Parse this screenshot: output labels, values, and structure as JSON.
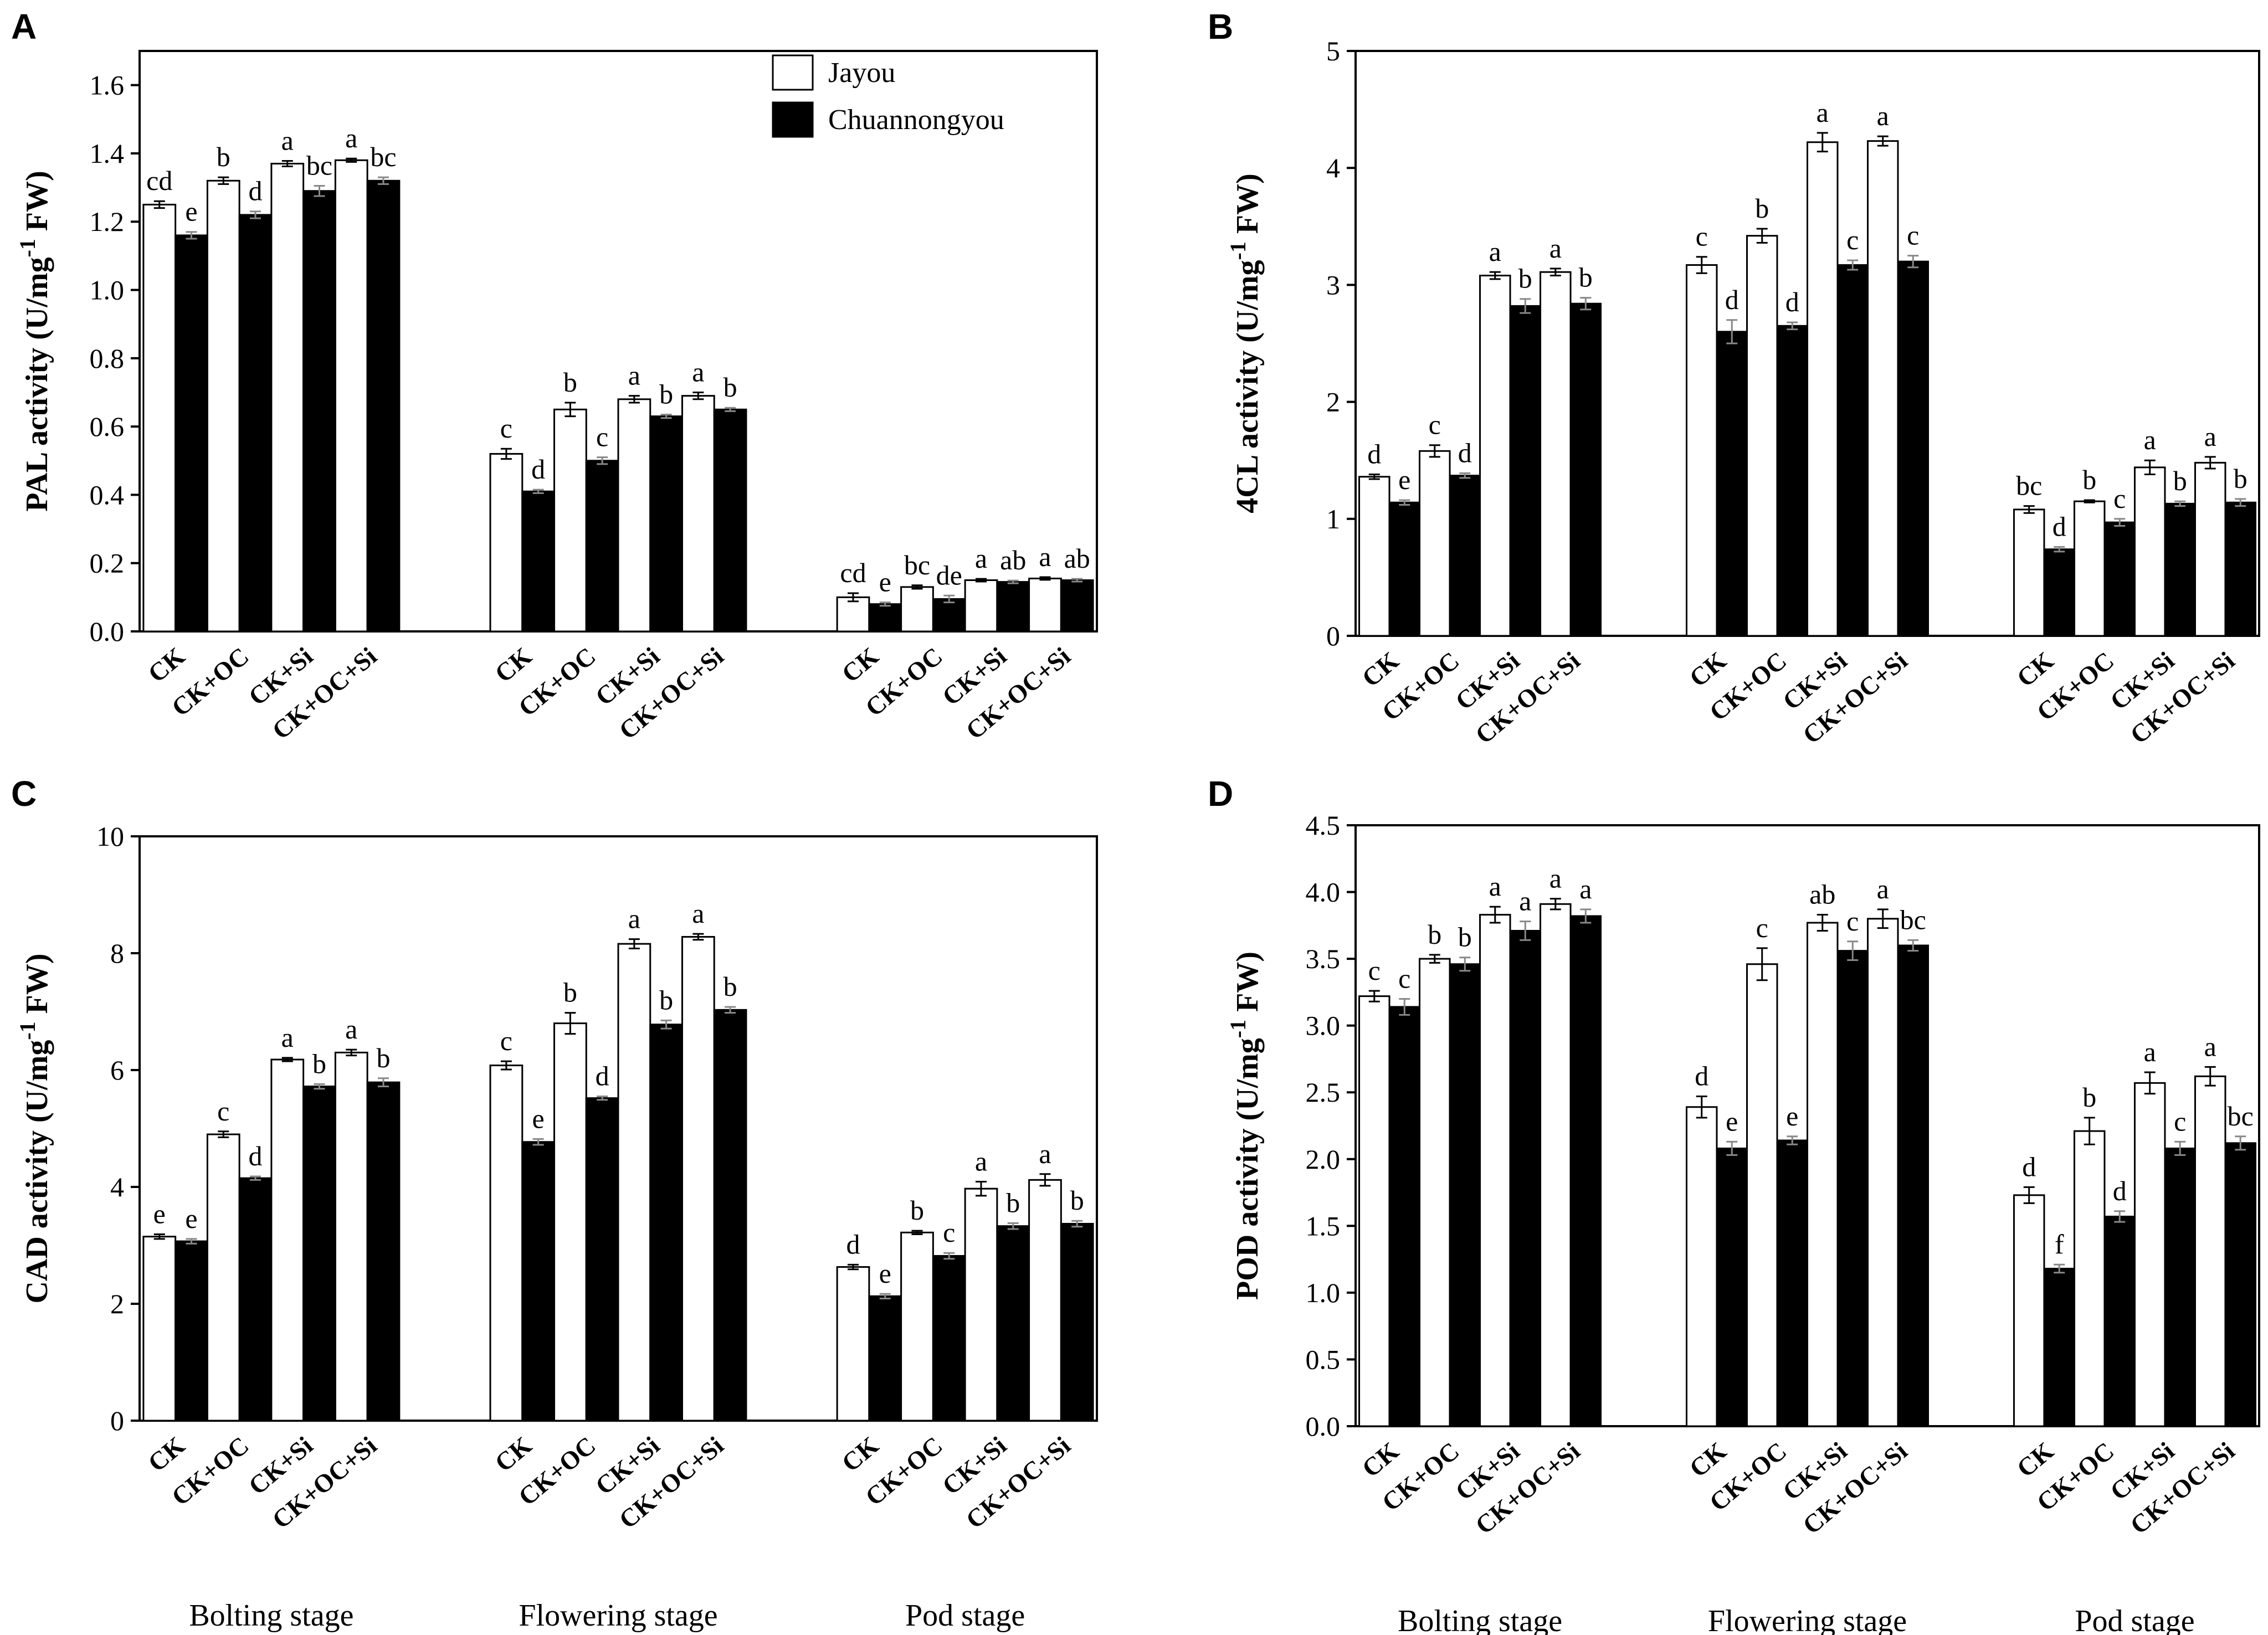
{
  "figure": {
    "legend": {
      "series": [
        "Jayou",
        "Chuannongyou"
      ],
      "placement": "top-right of panel A"
    },
    "treatments": [
      "CK",
      "CK+OC",
      "CK+Si",
      "CK+OC+Si"
    ],
    "stages": [
      "Bolting stage",
      "Flowering stage",
      "Pod stage"
    ]
  },
  "chart_data": [
    {
      "panel": "A",
      "type": "bar",
      "ylabel_main": "PAL activity (U/mg",
      "ylabel_sup": "-1",
      "ylabel_end": " FW)",
      "ylim": [
        0,
        1.7
      ],
      "yticks": [
        "0.0",
        "0.2",
        "0.4",
        "0.6",
        "0.8",
        "1.0",
        "1.2",
        "1.4",
        "1.6"
      ],
      "ytick_values": [
        0,
        0.2,
        0.4,
        0.6,
        0.8,
        1.0,
        1.2,
        1.4,
        1.6
      ],
      "categories": [
        "CK",
        "CK+OC",
        "CK+Si",
        "CK+OC+Si"
      ],
      "groups": [
        "Bolting stage",
        "Flowering stage",
        "Pod stage"
      ],
      "show_stage_labels": false,
      "series": [
        {
          "name": "Jayou",
          "values": [
            [
              1.25,
              1.32,
              1.37,
              1.38
            ],
            [
              0.52,
              0.65,
              0.68,
              0.69
            ],
            [
              0.1,
              0.13,
              0.15,
              0.155
            ]
          ],
          "errors": [
            [
              0.01,
              0.01,
              0.008,
              0.005
            ],
            [
              0.015,
              0.02,
              0.01,
              0.01
            ],
            [
              0.012,
              0.005,
              0.004,
              0.004
            ]
          ],
          "letters": [
            [
              "cd",
              "b",
              "a",
              "a"
            ],
            [
              "c",
              "b",
              "a",
              "a"
            ],
            [
              "cd",
              "bc",
              "a",
              "a"
            ]
          ]
        },
        {
          "name": "Chuannongyou",
          "values": [
            [
              1.16,
              1.22,
              1.29,
              1.32
            ],
            [
              0.41,
              0.5,
              0.63,
              0.65
            ],
            [
              0.08,
              0.095,
              0.145,
              0.15
            ]
          ],
          "errors": [
            [
              0.01,
              0.01,
              0.015,
              0.01
            ],
            [
              0.005,
              0.01,
              0.005,
              0.005
            ],
            [
              0.005,
              0.01,
              0.004,
              0.004
            ]
          ],
          "letters": [
            [
              "e",
              "d",
              "bc",
              "bc"
            ],
            [
              "d",
              "c",
              "b",
              "b"
            ],
            [
              "e",
              "de",
              "ab",
              "ab"
            ]
          ]
        }
      ]
    },
    {
      "panel": "B",
      "type": "bar",
      "ylabel_main": "4CL activity (U/mg",
      "ylabel_sup": "-1",
      "ylabel_end": " FW)",
      "ylim": [
        0,
        5
      ],
      "yticks": [
        "0",
        "1",
        "2",
        "3",
        "4",
        "5"
      ],
      "ytick_values": [
        0,
        1,
        2,
        3,
        4,
        5
      ],
      "categories": [
        "CK",
        "CK+OC",
        "CK+Si",
        "CK+OC+Si"
      ],
      "groups": [
        "Bolting stage",
        "Flowering stage",
        "Pod stage"
      ],
      "show_stage_labels": false,
      "series": [
        {
          "name": "Jayou",
          "values": [
            [
              1.36,
              1.58,
              3.08,
              3.11
            ],
            [
              3.17,
              3.42,
              4.22,
              4.23
            ],
            [
              1.08,
              1.15,
              1.44,
              1.48
            ]
          ],
          "errors": [
            [
              0.02,
              0.05,
              0.03,
              0.03
            ],
            [
              0.07,
              0.06,
              0.08,
              0.04
            ],
            [
              0.03,
              0.01,
              0.06,
              0.05
            ]
          ],
          "letters": [
            [
              "d",
              "c",
              "a",
              "a"
            ],
            [
              "c",
              "b",
              "a",
              "a"
            ],
            [
              "bc",
              "b",
              "a",
              "a"
            ]
          ]
        },
        {
          "name": "Chuannongyou",
          "values": [
            [
              1.14,
              1.37,
              2.82,
              2.84
            ],
            [
              2.6,
              2.65,
              3.17,
              3.2
            ],
            [
              0.74,
              0.97,
              1.13,
              1.14
            ]
          ],
          "errors": [
            [
              0.02,
              0.02,
              0.06,
              0.05
            ],
            [
              0.1,
              0.03,
              0.04,
              0.05
            ],
            [
              0.02,
              0.03,
              0.02,
              0.03
            ]
          ],
          "letters": [
            [
              "e",
              "d",
              "b",
              "b"
            ],
            [
              "d",
              "d",
              "c",
              "c"
            ],
            [
              "d",
              "c",
              "b",
              "b"
            ]
          ]
        }
      ]
    },
    {
      "panel": "C",
      "type": "bar",
      "ylabel_main": "CAD activity (U/mg",
      "ylabel_sup": "-1",
      "ylabel_end": " FW)",
      "ylim": [
        0,
        10
      ],
      "yticks": [
        "0",
        "2",
        "4",
        "6",
        "8",
        "10"
      ],
      "ytick_values": [
        0,
        2,
        4,
        6,
        8,
        10
      ],
      "categories": [
        "CK",
        "CK+OC",
        "CK+Si",
        "CK+OC+Si"
      ],
      "groups": [
        "Bolting stage",
        "Flowering stage",
        "Pod stage"
      ],
      "show_stage_labels": true,
      "series": [
        {
          "name": "Jayou",
          "values": [
            [
              3.15,
              4.9,
              6.18,
              6.3
            ],
            [
              6.08,
              6.8,
              8.16,
              8.28
            ],
            [
              2.63,
              3.22,
              3.97,
              4.12
            ]
          ],
          "errors": [
            [
              0.04,
              0.05,
              0.03,
              0.05
            ],
            [
              0.07,
              0.18,
              0.08,
              0.05
            ],
            [
              0.04,
              0.03,
              0.12,
              0.1
            ]
          ],
          "letters": [
            [
              "e",
              "c",
              "a",
              "a"
            ],
            [
              "c",
              "b",
              "a",
              "a"
            ],
            [
              "d",
              "b",
              "a",
              "a"
            ]
          ]
        },
        {
          "name": "Chuannongyou",
          "values": [
            [
              3.07,
              4.15,
              5.72,
              5.79
            ],
            [
              4.77,
              5.52,
              6.78,
              7.03
            ],
            [
              2.13,
              2.82,
              3.33,
              3.37
            ]
          ],
          "errors": [
            [
              0.04,
              0.03,
              0.04,
              0.07
            ],
            [
              0.05,
              0.03,
              0.07,
              0.05
            ],
            [
              0.04,
              0.05,
              0.05,
              0.05
            ]
          ],
          "letters": [
            [
              "e",
              "d",
              "b",
              "b"
            ],
            [
              "e",
              "d",
              "b",
              "b"
            ],
            [
              "e",
              "c",
              "b",
              "b"
            ]
          ]
        }
      ]
    },
    {
      "panel": "D",
      "type": "bar",
      "ylabel_main": "POD activity (U/mg",
      "ylabel_sup": "-1",
      "ylabel_end": " FW)",
      "ylim": [
        0,
        4.5
      ],
      "yticks": [
        "0.0",
        "0.5",
        "1.0",
        "1.5",
        "2.0",
        "2.5",
        "3.0",
        "3.5",
        "4.0",
        "4.5"
      ],
      "ytick_values": [
        0,
        0.5,
        1.0,
        1.5,
        2.0,
        2.5,
        3.0,
        3.5,
        4.0,
        4.5
      ],
      "categories": [
        "CK",
        "CK+OC",
        "CK+Si",
        "CK+OC+Si"
      ],
      "groups": [
        "Bolting stage",
        "Flowering stage",
        "Pod stage"
      ],
      "show_stage_labels": true,
      "series": [
        {
          "name": "Jayou",
          "values": [
            [
              3.22,
              3.5,
              3.83,
              3.91
            ],
            [
              2.39,
              3.46,
              3.77,
              3.8
            ],
            [
              1.73,
              2.21,
              2.57,
              2.62
            ]
          ],
          "errors": [
            [
              0.04,
              0.03,
              0.06,
              0.04
            ],
            [
              0.08,
              0.12,
              0.06,
              0.07
            ],
            [
              0.06,
              0.1,
              0.08,
              0.07
            ]
          ],
          "letters": [
            [
              "c",
              "b",
              "a",
              "a"
            ],
            [
              "d",
              "c",
              "ab",
              "a"
            ],
            [
              "d",
              "b",
              "a",
              "a"
            ]
          ]
        },
        {
          "name": "Chuannongyou",
          "values": [
            [
              3.14,
              3.46,
              3.71,
              3.82
            ],
            [
              2.08,
              2.14,
              3.56,
              3.6
            ],
            [
              1.18,
              1.57,
              2.08,
              2.12
            ]
          ],
          "errors": [
            [
              0.06,
              0.05,
              0.07,
              0.05
            ],
            [
              0.05,
              0.03,
              0.07,
              0.04
            ],
            [
              0.03,
              0.04,
              0.05,
              0.05
            ]
          ],
          "letters": [
            [
              "c",
              "b",
              "a",
              "a"
            ],
            [
              "e",
              "e",
              "c",
              "bc"
            ],
            [
              "f",
              "d",
              "c",
              "bc"
            ]
          ]
        }
      ]
    }
  ]
}
